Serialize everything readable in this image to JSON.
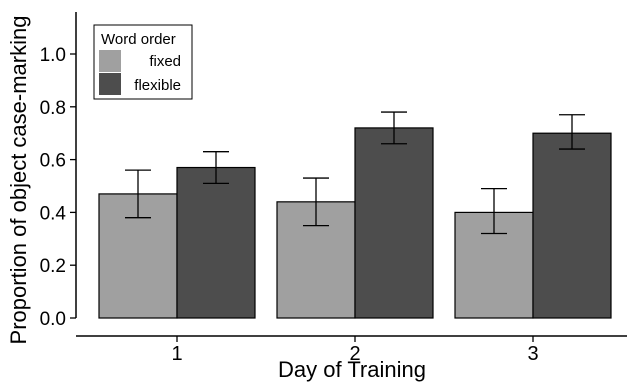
{
  "chart_data": {
    "type": "bar",
    "xlabel": "Day of Training",
    "ylabel": "Proportion of object case-marking",
    "categories": [
      "1",
      "2",
      "3"
    ],
    "ylim": [
      0,
      1.1
    ],
    "yticks": [
      "0.0",
      "0.2",
      "0.4",
      "0.6",
      "0.8",
      "1.0"
    ],
    "grid": false,
    "legend": {
      "title": "Word order",
      "position": "top-left"
    },
    "series": [
      {
        "name": "fixed",
        "color": "#a0a0a0",
        "values": [
          0.47,
          0.44,
          0.4
        ],
        "error_low": [
          0.38,
          0.35,
          0.32
        ],
        "error_high": [
          0.56,
          0.53,
          0.49
        ]
      },
      {
        "name": "flexible",
        "color": "#4d4d4d",
        "values": [
          0.57,
          0.72,
          0.7
        ],
        "error_low": [
          0.51,
          0.66,
          0.64
        ],
        "error_high": [
          0.63,
          0.78,
          0.77
        ]
      }
    ]
  }
}
